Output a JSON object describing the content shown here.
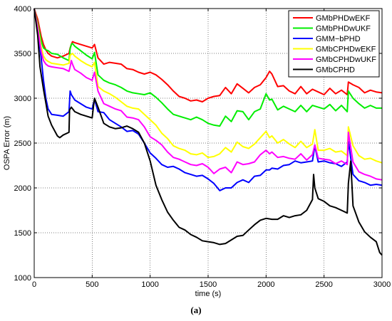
{
  "caption": "(a)",
  "chart_data": {
    "type": "line",
    "xlabel": "time (s)",
    "ylabel": "OSPA Error (m)",
    "xlim": [
      0,
      3000
    ],
    "ylim": [
      1000,
      4000
    ],
    "xticks": [
      0,
      500,
      1000,
      1500,
      2000,
      2500,
      3000
    ],
    "yticks": [
      1000,
      1500,
      2000,
      2500,
      3000,
      3500,
      4000
    ],
    "grid": true,
    "legend_position": "top-right",
    "series": [
      {
        "name": "GMbPHDwEKF",
        "color": "#ff0000",
        "x": [
          0,
          30,
          60,
          80,
          100,
          120,
          150,
          200,
          250,
          300,
          310,
          320,
          330,
          350,
          400,
          450,
          500,
          520,
          550,
          600,
          650,
          700,
          750,
          800,
          850,
          900,
          950,
          1000,
          1050,
          1100,
          1150,
          1200,
          1250,
          1300,
          1350,
          1400,
          1450,
          1500,
          1550,
          1600,
          1650,
          1700,
          1750,
          1800,
          1850,
          1900,
          1950,
          2000,
          2030,
          2050,
          2100,
          2150,
          2200,
          2250,
          2300,
          2350,
          2400,
          2450,
          2500,
          2550,
          2600,
          2650,
          2700,
          2710,
          2750,
          2800,
          2850,
          2900,
          2950,
          3000
        ],
        "y": [
          4000,
          3880,
          3690,
          3600,
          3540,
          3500,
          3470,
          3450,
          3470,
          3500,
          3560,
          3600,
          3630,
          3620,
          3600,
          3580,
          3560,
          3600,
          3450,
          3380,
          3400,
          3390,
          3380,
          3330,
          3320,
          3290,
          3270,
          3290,
          3260,
          3210,
          3150,
          3080,
          3020,
          3000,
          2970,
          2980,
          2960,
          3000,
          3020,
          3030,
          3120,
          3050,
          3160,
          3110,
          3060,
          3120,
          3150,
          3230,
          3300,
          3270,
          3130,
          3140,
          3080,
          3050,
          3130,
          3050,
          3100,
          3070,
          3040,
          3110,
          3050,
          3090,
          3040,
          3180,
          3150,
          3120,
          3060,
          3090,
          3070,
          3060
        ]
      },
      {
        "name": "GMbPHDwUKF",
        "color": "#00ee00",
        "x": [
          0,
          30,
          60,
          80,
          100,
          120,
          150,
          200,
          250,
          300,
          310,
          320,
          330,
          350,
          400,
          450,
          500,
          520,
          550,
          600,
          650,
          700,
          750,
          800,
          850,
          900,
          950,
          1000,
          1050,
          1100,
          1150,
          1200,
          1250,
          1300,
          1350,
          1400,
          1450,
          1500,
          1550,
          1600,
          1650,
          1700,
          1750,
          1800,
          1850,
          1900,
          1950,
          2000,
          2030,
          2050,
          2100,
          2150,
          2200,
          2250,
          2300,
          2350,
          2400,
          2450,
          2500,
          2550,
          2600,
          2650,
          2700,
          2710,
          2750,
          2800,
          2850,
          2900,
          2950,
          3000
        ],
        "y": [
          4000,
          3830,
          3640,
          3560,
          3540,
          3530,
          3500,
          3490,
          3450,
          3420,
          3550,
          3600,
          3610,
          3580,
          3530,
          3480,
          3440,
          3510,
          3260,
          3200,
          3170,
          3150,
          3120,
          3080,
          3060,
          3050,
          3040,
          3060,
          3010,
          2950,
          2880,
          2820,
          2800,
          2780,
          2760,
          2790,
          2760,
          2720,
          2700,
          2690,
          2800,
          2740,
          2860,
          2850,
          2760,
          2850,
          2880,
          3050,
          2980,
          2990,
          2870,
          2910,
          2880,
          2850,
          2920,
          2850,
          2920,
          2900,
          2880,
          2930,
          2860,
          2920,
          2850,
          3080,
          3000,
          2940,
          2890,
          2920,
          2890,
          2890
        ]
      },
      {
        "name": "GMM−bPHD",
        "color": "#0000ff",
        "x": [
          0,
          30,
          60,
          80,
          100,
          120,
          150,
          200,
          250,
          300,
          310,
          320,
          330,
          350,
          400,
          450,
          500,
          520,
          550,
          600,
          650,
          700,
          750,
          800,
          850,
          900,
          950,
          1000,
          1050,
          1100,
          1150,
          1200,
          1250,
          1300,
          1350,
          1400,
          1450,
          1500,
          1550,
          1600,
          1650,
          1700,
          1750,
          1800,
          1850,
          1900,
          1950,
          2000,
          2030,
          2050,
          2100,
          2150,
          2200,
          2250,
          2300,
          2350,
          2400,
          2420,
          2450,
          2500,
          2550,
          2600,
          2650,
          2700,
          2710,
          2750,
          2800,
          2850,
          2900,
          2950,
          3000
        ],
        "y": [
          4000,
          3750,
          3450,
          3200,
          3000,
          2880,
          2820,
          2810,
          2800,
          2850,
          3080,
          3040,
          3020,
          2980,
          2940,
          2900,
          2880,
          2990,
          2850,
          2840,
          2760,
          2720,
          2680,
          2630,
          2640,
          2600,
          2500,
          2390,
          2330,
          2260,
          2230,
          2240,
          2210,
          2170,
          2150,
          2130,
          2140,
          2100,
          2050,
          1970,
          2000,
          2000,
          2060,
          2090,
          2060,
          2130,
          2140,
          2200,
          2200,
          2220,
          2210,
          2250,
          2260,
          2300,
          2280,
          2290,
          2300,
          2470,
          2290,
          2300,
          2280,
          2270,
          2240,
          2290,
          2520,
          2150,
          2080,
          2060,
          2030,
          2040,
          2030
        ]
      },
      {
        "name": "GMbCPHDwEKF",
        "color": "#ffff00",
        "x": [
          0,
          30,
          60,
          80,
          100,
          120,
          150,
          200,
          250,
          300,
          310,
          320,
          330,
          350,
          400,
          450,
          500,
          520,
          550,
          600,
          650,
          700,
          750,
          800,
          850,
          900,
          950,
          1000,
          1050,
          1100,
          1150,
          1200,
          1250,
          1300,
          1350,
          1400,
          1450,
          1500,
          1550,
          1600,
          1650,
          1700,
          1750,
          1800,
          1850,
          1900,
          1950,
          2000,
          2030,
          2050,
          2100,
          2150,
          2200,
          2250,
          2300,
          2350,
          2400,
          2420,
          2450,
          2500,
          2550,
          2600,
          2650,
          2700,
          2710,
          2750,
          2800,
          2850,
          2900,
          2950,
          3000
        ],
        "y": [
          4000,
          3800,
          3570,
          3470,
          3430,
          3410,
          3390,
          3380,
          3370,
          3390,
          3480,
          3490,
          3500,
          3470,
          3420,
          3380,
          3350,
          3400,
          3130,
          3080,
          3050,
          3010,
          2960,
          2910,
          2890,
          2880,
          2820,
          2760,
          2700,
          2610,
          2550,
          2470,
          2440,
          2420,
          2380,
          2370,
          2390,
          2340,
          2350,
          2380,
          2450,
          2400,
          2510,
          2460,
          2440,
          2490,
          2560,
          2630,
          2560,
          2580,
          2500,
          2540,
          2490,
          2450,
          2520,
          2450,
          2490,
          2650,
          2420,
          2420,
          2440,
          2400,
          2410,
          2360,
          2680,
          2470,
          2360,
          2320,
          2330,
          2300,
          2280
        ]
      },
      {
        "name": "GMbCPHDwUKF",
        "color": "#ff00ff",
        "x": [
          0,
          30,
          60,
          80,
          100,
          120,
          150,
          200,
          250,
          300,
          310,
          320,
          330,
          350,
          400,
          450,
          500,
          520,
          550,
          600,
          650,
          700,
          750,
          800,
          850,
          900,
          950,
          1000,
          1050,
          1100,
          1150,
          1200,
          1250,
          1300,
          1350,
          1400,
          1450,
          1500,
          1550,
          1600,
          1650,
          1700,
          1750,
          1800,
          1850,
          1900,
          1950,
          2000,
          2030,
          2050,
          2100,
          2150,
          2200,
          2250,
          2300,
          2350,
          2400,
          2420,
          2450,
          2500,
          2550,
          2600,
          2650,
          2700,
          2710,
          2750,
          2800,
          2850,
          2900,
          2950,
          3000
        ],
        "y": [
          4000,
          3780,
          3520,
          3420,
          3380,
          3360,
          3350,
          3340,
          3330,
          3300,
          3350,
          3420,
          3380,
          3320,
          3280,
          3230,
          3200,
          3290,
          3080,
          2940,
          2910,
          2880,
          2860,
          2790,
          2780,
          2760,
          2680,
          2570,
          2530,
          2480,
          2400,
          2340,
          2320,
          2290,
          2260,
          2250,
          2270,
          2230,
          2160,
          2210,
          2230,
          2170,
          2290,
          2260,
          2270,
          2290,
          2370,
          2420,
          2380,
          2400,
          2340,
          2350,
          2330,
          2320,
          2380,
          2310,
          2370,
          2480,
          2330,
          2320,
          2310,
          2270,
          2300,
          2260,
          2620,
          2290,
          2180,
          2150,
          2130,
          2100,
          2090
        ]
      },
      {
        "name": "GMbCPHD",
        "color": "#000000",
        "x": [
          0,
          30,
          50,
          80,
          100,
          120,
          150,
          200,
          220,
          250,
          300,
          305,
          320,
          350,
          400,
          450,
          500,
          510,
          520,
          550,
          600,
          650,
          700,
          750,
          800,
          850,
          900,
          950,
          1000,
          1050,
          1100,
          1150,
          1200,
          1250,
          1300,
          1350,
          1400,
          1450,
          1500,
          1550,
          1600,
          1650,
          1700,
          1750,
          1800,
          1850,
          1900,
          1950,
          2000,
          2050,
          2100,
          2150,
          2200,
          2250,
          2300,
          2350,
          2400,
          2410,
          2420,
          2450,
          2500,
          2550,
          2600,
          2650,
          2700,
          2710,
          2730,
          2750,
          2800,
          2850,
          2900,
          2950,
          2980,
          3000
        ],
        "y": [
          4000,
          3700,
          3350,
          3100,
          2950,
          2800,
          2700,
          2580,
          2560,
          2590,
          2620,
          2870,
          2900,
          2850,
          2820,
          2800,
          2780,
          2900,
          3000,
          2900,
          2720,
          2680,
          2660,
          2670,
          2690,
          2660,
          2620,
          2500,
          2300,
          2030,
          1870,
          1730,
          1640,
          1560,
          1530,
          1480,
          1450,
          1410,
          1400,
          1390,
          1370,
          1380,
          1420,
          1460,
          1470,
          1530,
          1590,
          1640,
          1660,
          1650,
          1650,
          1690,
          1670,
          1690,
          1700,
          1750,
          1870,
          2150,
          2000,
          1880,
          1850,
          1800,
          1780,
          1750,
          1720,
          2050,
          2300,
          1800,
          1620,
          1510,
          1450,
          1400,
          1280,
          1250
        ]
      }
    ]
  }
}
